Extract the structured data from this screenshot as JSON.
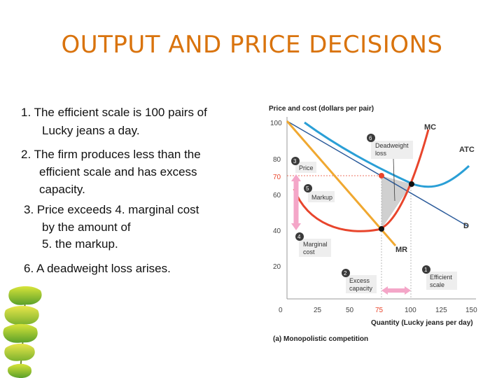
{
  "title": "OUTPUT AND PRICE DECISIONS",
  "points": {
    "p1a": "1. The efficient scale is 100 pairs of",
    "p1b": "Lucky jeans a day.",
    "p2a": "2. The firm produces less than the",
    "p2b": "efficient scale and has excess",
    "p2c": "capacity.",
    "p3a": "3. Price exceeds 4. marginal cost",
    "p3b": "by the amount of",
    "p3c": "5. the markup.",
    "p6": "6. A deadweight loss arises."
  },
  "diagram": {
    "y_axis_title": "Price and cost (dollars per pair)",
    "x_axis_title": "Quantity (Lucky jeans per day)",
    "caption": "(a) Monopolistic competition",
    "y_ticks": [
      "100",
      "80",
      "70",
      "60",
      "40",
      "20"
    ],
    "x_ticks": [
      "0",
      "25",
      "50",
      "75",
      "100",
      "125",
      "150"
    ],
    "curves": {
      "mc": "MC",
      "atc": "ATC",
      "d": "D",
      "mr": "MR"
    },
    "callouts": {
      "n1": "1",
      "c1a": "Efficient",
      "c1b": "scale",
      "n2": "2",
      "c2a": "Excess",
      "c2b": "capacity",
      "n3": "3",
      "c3": "Price",
      "n4": "4",
      "c4a": "Marginal",
      "c4b": "cost",
      "n5": "5",
      "c5": "Markup",
      "n6": "6",
      "c6a": "Deadweight",
      "c6b": "loss"
    },
    "colors": {
      "demand": "#f0a830",
      "mc": "#e8452c",
      "atc": "#2a9fd6",
      "deadweight": "#c8c8c8",
      "markup": "#f4a6c8",
      "callout": "#3a3a3a"
    }
  }
}
